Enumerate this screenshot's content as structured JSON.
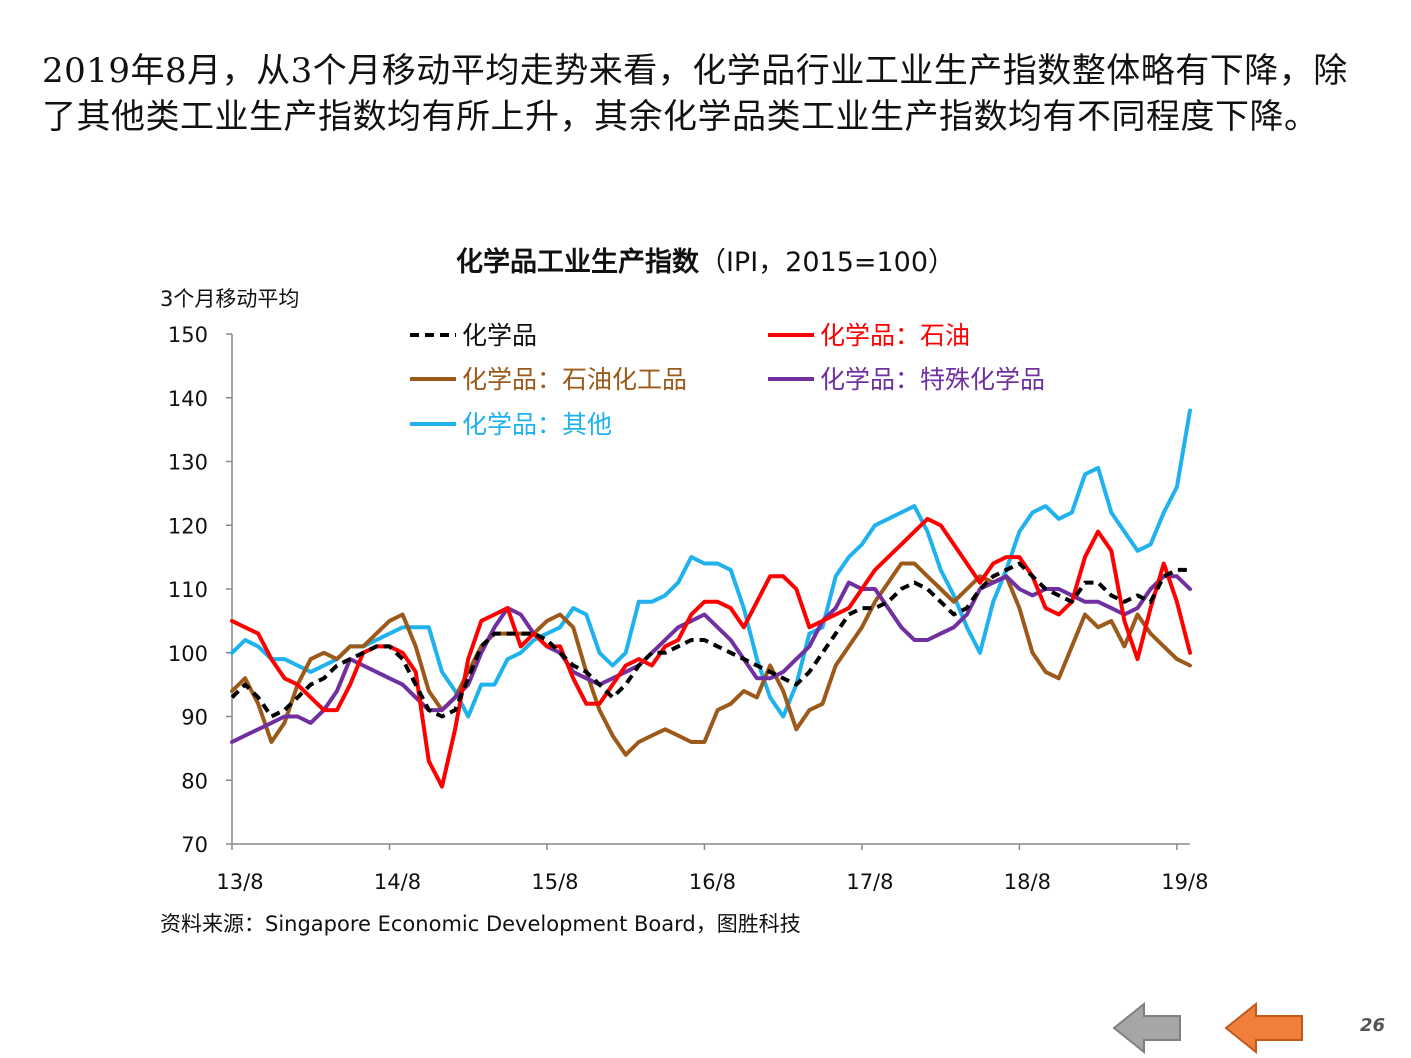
{
  "headline": "2019年8月，从3个月移动平均走势来看，化学品行业工业生产指数整体略有下降，除了其他类工业生产指数均有所上升，其余化学品类工业生产指数均有不同程度下降。",
  "chart_title_main": "化学品工业生产指数",
  "chart_title_sub": "（IPI，2015=100）",
  "unit_label": "3个月移动平均",
  "source": "资料来源：Singapore Economic Development Board，图胜科技",
  "page_number": "26",
  "colors": {
    "chemicals": "#000000",
    "petroleum": "#ff0000",
    "petrochemicals": "#9c5a1a",
    "specialty": "#7030a0",
    "others": "#1fb2ee",
    "axis": "#888888",
    "nav_prev": "#a6a6a6",
    "nav_next": "#f07f3c"
  },
  "chart_data": {
    "type": "line",
    "title": "化学品工业生产指数（IPI，2015=100）",
    "xlabel": "",
    "ylabel": "3个月移动平均",
    "ylim": [
      70,
      150
    ],
    "yticks": [
      70,
      80,
      90,
      100,
      110,
      120,
      130,
      140,
      150
    ],
    "x_tick_labels": [
      "13/8",
      "14/8",
      "15/8",
      "16/8",
      "17/8",
      "18/8",
      "19/8"
    ],
    "x_tick_index": [
      0,
      12,
      24,
      36,
      48,
      60,
      72
    ],
    "legend_position": "top",
    "series": [
      {
        "name": "化学品",
        "key": "chemicals",
        "dash": true,
        "values": [
          93,
          95,
          93,
          90,
          91,
          93,
          95,
          96,
          98,
          99,
          100,
          101,
          101,
          99,
          95,
          91,
          90,
          91,
          96,
          101,
          103,
          103,
          103,
          103,
          102,
          100,
          98,
          97,
          95,
          93,
          95,
          98,
          100,
          100,
          101,
          102,
          102,
          101,
          100,
          99,
          98,
          97,
          96,
          95,
          97,
          100,
          103,
          106,
          107,
          107,
          108,
          110,
          111,
          110,
          108,
          106,
          107,
          110,
          112,
          113,
          114,
          112,
          110,
          109,
          108,
          111,
          111,
          109,
          108,
          109,
          108,
          112,
          113,
          113
        ]
      },
      {
        "name": "化学品：石油",
        "key": "petroleum",
        "dash": false,
        "values": [
          105,
          104,
          103,
          99,
          96,
          95,
          93,
          91,
          91,
          95,
          100,
          101,
          101,
          100,
          97,
          83,
          79,
          88,
          99,
          105,
          106,
          107,
          101,
          103,
          101,
          101,
          96,
          92,
          92,
          95,
          98,
          99,
          98,
          101,
          102,
          106,
          108,
          108,
          107,
          104,
          108,
          112,
          112,
          110,
          104,
          105,
          106,
          107,
          110,
          113,
          115,
          117,
          119,
          121,
          120,
          117,
          114,
          111,
          114,
          115,
          115,
          112,
          107,
          106,
          108,
          115,
          119,
          116,
          105,
          99,
          107,
          114,
          108,
          100
        ]
      },
      {
        "name": "化学品：石油化工品",
        "key": "petrochemicals",
        "dash": false,
        "values": [
          94,
          96,
          92,
          86,
          89,
          95,
          99,
          100,
          99,
          101,
          101,
          103,
          105,
          106,
          101,
          94,
          91,
          93,
          97,
          101,
          103,
          103,
          103,
          103,
          105,
          106,
          104,
          97,
          91,
          87,
          84,
          86,
          87,
          88,
          87,
          86,
          86,
          91,
          92,
          94,
          93,
          98,
          94,
          88,
          91,
          92,
          98,
          101,
          104,
          108,
          111,
          114,
          114,
          112,
          110,
          108,
          110,
          112,
          111,
          112,
          107,
          100,
          97,
          96,
          101,
          106,
          104,
          105,
          101,
          106,
          103,
          101,
          99,
          98
        ]
      },
      {
        "name": "化学品：特殊化学品",
        "key": "specialty",
        "dash": false,
        "values": [
          86,
          87,
          88,
          89,
          90,
          90,
          89,
          91,
          94,
          99,
          98,
          97,
          96,
          95,
          93,
          91,
          91,
          93,
          95,
          100,
          104,
          107,
          106,
          103,
          101,
          100,
          97,
          96,
          95,
          96,
          97,
          98,
          100,
          102,
          104,
          105,
          106,
          104,
          102,
          99,
          96,
          96,
          97,
          99,
          101,
          105,
          107,
          111,
          110,
          110,
          107,
          104,
          102,
          102,
          103,
          104,
          106,
          110,
          111,
          112,
          110,
          109,
          110,
          110,
          109,
          108,
          108,
          107,
          106,
          107,
          110,
          112,
          112,
          110
        ]
      },
      {
        "name": "化学品：其他",
        "key": "others",
        "dash": false,
        "values": [
          100,
          102,
          101,
          99,
          99,
          98,
          97,
          98,
          99,
          101,
          101,
          102,
          103,
          104,
          104,
          104,
          97,
          94,
          90,
          95,
          95,
          99,
          100,
          102,
          103,
          104,
          107,
          106,
          100,
          98,
          100,
          108,
          108,
          109,
          111,
          115,
          114,
          114,
          113,
          107,
          99,
          93,
          90,
          95,
          103,
          104,
          112,
          115,
          117,
          120,
          121,
          122,
          123,
          119,
          113,
          109,
          104,
          100,
          108,
          113,
          119,
          122,
          123,
          121,
          122,
          128,
          129,
          122,
          119,
          116,
          117,
          122,
          126,
          138
        ]
      }
    ]
  },
  "nav": {
    "prev_icon": "left-arrow-icon",
    "next_icon": "left-arrow-icon"
  }
}
